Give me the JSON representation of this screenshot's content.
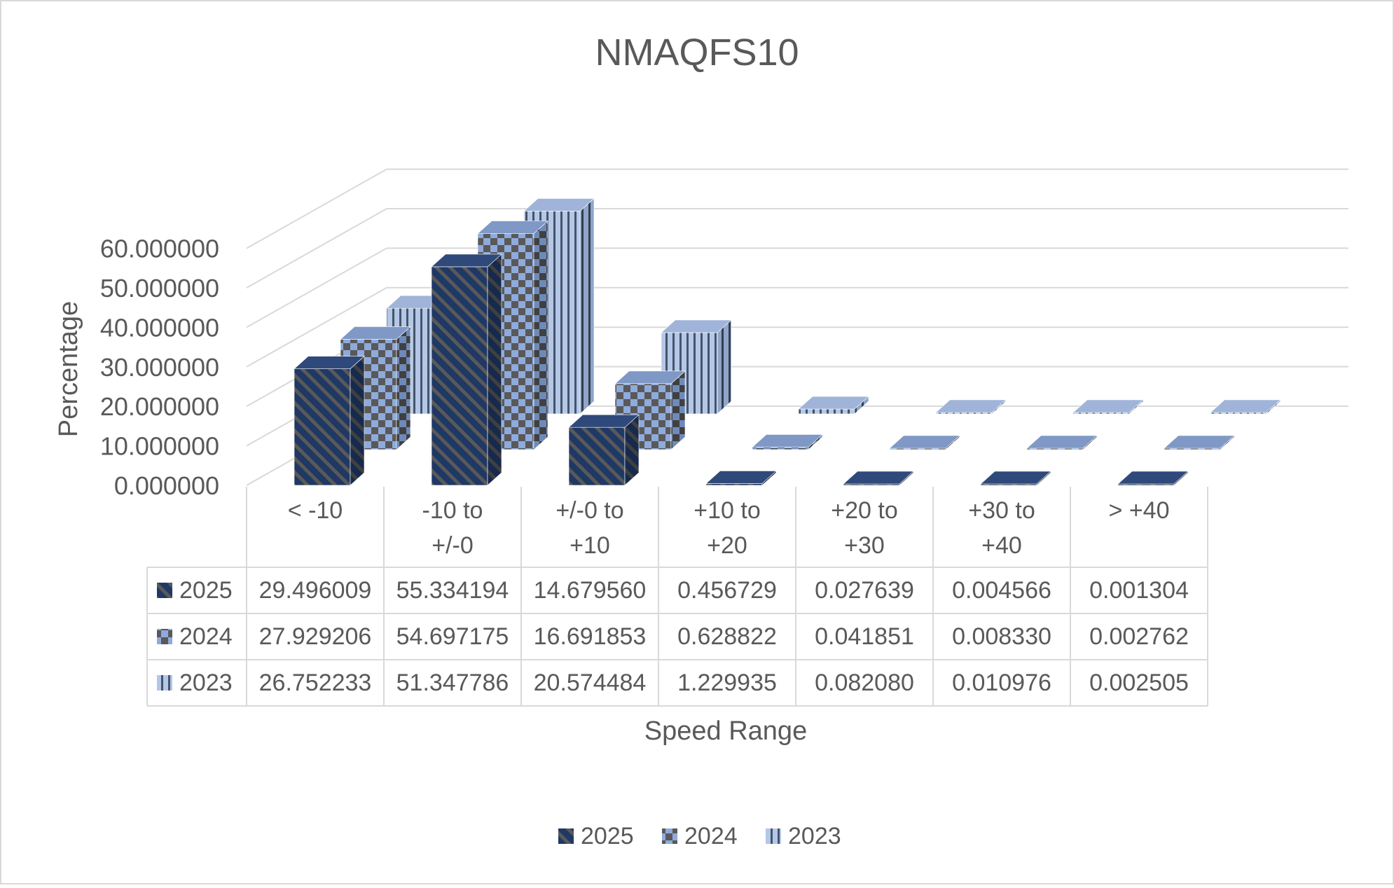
{
  "chart_data": {
    "type": "bar",
    "title": "NMAQFS10",
    "xlabel": "Speed Range",
    "ylabel": "Percentage",
    "ylim": [
      0,
      60
    ],
    "y_ticks": [
      "0.000000",
      "10.000000",
      "20.000000",
      "30.000000",
      "40.000000",
      "50.000000",
      "60.000000"
    ],
    "categories": [
      [
        "< -10"
      ],
      [
        "-10 to",
        "+/-0"
      ],
      [
        "+/-0 to",
        "+10"
      ],
      [
        "+10 to",
        "+20"
      ],
      [
        "+20 to",
        "+30"
      ],
      [
        "+30 to",
        "+40"
      ],
      [
        "> +40"
      ]
    ],
    "series": [
      {
        "name": "2025",
        "pattern": "diagonal",
        "color": "#1f3864",
        "color2": "#2f5597",
        "values": [
          29.496009,
          55.334194,
          14.67956,
          0.456729,
          0.027639,
          0.004566,
          0.001304
        ],
        "labels": [
          "29.496009",
          "55.334194",
          "14.679560",
          "0.456729",
          "0.027639",
          "0.004566",
          "0.001304"
        ]
      },
      {
        "name": "2024",
        "pattern": "checker",
        "color": "#595959",
        "color2": "#8faadc",
        "values": [
          27.929206,
          54.697175,
          16.691853,
          0.628822,
          0.041851,
          0.00833,
          0.002762
        ],
        "labels": [
          "27.929206",
          "54.697175",
          "16.691853",
          "0.628822",
          "0.041851",
          "0.008330",
          "0.002762"
        ]
      },
      {
        "name": "2023",
        "pattern": "vertical",
        "color": "#b4c7e7",
        "color2": "#44546a",
        "values": [
          26.752233,
          51.347786,
          20.574484,
          1.229935,
          0.08208,
          0.010976,
          0.002505
        ],
        "labels": [
          "26.752233",
          "51.347786",
          "20.574484",
          "1.229935",
          "0.082080",
          "0.010976",
          "0.002505"
        ]
      }
    ],
    "legend_position": "bottom",
    "data_table": true,
    "gridlines": true
  }
}
